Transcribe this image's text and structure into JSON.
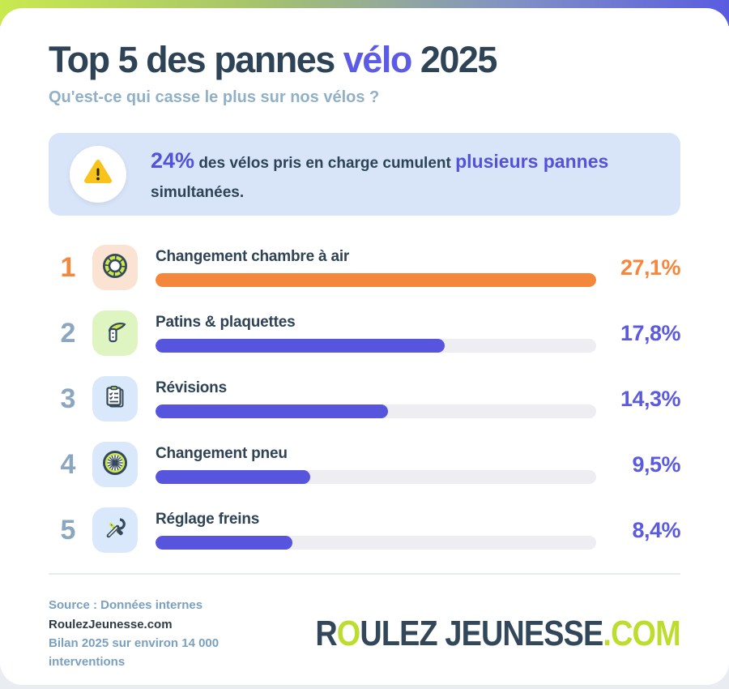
{
  "header": {
    "title_prefix": "Top 5 des pannes",
    "title_highlight": "vélo",
    "title_suffix": "2025",
    "subtitle": "Qu'est-ce qui casse le plus sur nos vélos ?"
  },
  "alert": {
    "stat": "24%",
    "segment_1": "des vélos pris en charge cumulent",
    "highlight": "plusieurs pannes",
    "segment_2": "simultanées.",
    "icon": "warning-triangle-icon",
    "bg_color": "#d8e5f8",
    "highlight_color": "#5352d8"
  },
  "chart_data": {
    "type": "bar",
    "orientation": "horizontal",
    "title": "Top 5 des pannes vélo 2025",
    "subtitle": "Qu'est-ce qui casse le plus sur nos vélos ?",
    "categories": [
      "Changement chambre à air",
      "Patins & plaquettes",
      "Révisions",
      "Changement pneu",
      "Réglage freins"
    ],
    "values": [
      27.1,
      17.8,
      14.3,
      9.5,
      8.4
    ],
    "value_labels": [
      "27,1%",
      "17,8%",
      "14,3%",
      "9,5%",
      "8,4%"
    ],
    "xlim": [
      0,
      27.1
    ],
    "grid": false,
    "legend": false,
    "annotation": "24% des vélos pris en charge cumulent plusieurs pannes simultanées."
  },
  "ranking": {
    "items": [
      {
        "rank": "1",
        "label": "Changement chambre à air",
        "value": 27.1,
        "value_label": "27,1%",
        "icon": "tire-tube-icon",
        "rank_color": "#f5873c",
        "accent": "#f5873c",
        "bar_color": "#f5873c",
        "tile_bg": "#fbe3d4"
      },
      {
        "rank": "2",
        "label": "Patins & plaquettes",
        "value": 17.8,
        "value_label": "17,8%",
        "icon": "brake-lever-icon",
        "rank_color": "#8ba7c0",
        "accent": "#5b5be0",
        "bar_color": "#5754de",
        "tile_bg": "#def5c2"
      },
      {
        "rank": "3",
        "label": "Révisions",
        "value": 14.3,
        "value_label": "14,3%",
        "icon": "checklist-icon",
        "rank_color": "#8ba7c0",
        "accent": "#5b5be0",
        "bar_color": "#5754de",
        "tile_bg": "#dae8fb"
      },
      {
        "rank": "4",
        "label": "Changement pneu",
        "value": 9.5,
        "value_label": "9,5%",
        "icon": "wheel-icon",
        "rank_color": "#8ba7c0",
        "accent": "#5b5be0",
        "bar_color": "#5754de",
        "tile_bg": "#dae8fb"
      },
      {
        "rank": "5",
        "label": "Réglage freins",
        "value": 8.4,
        "value_label": "8,4%",
        "icon": "tools-icon",
        "rank_color": "#8ba7c0",
        "accent": "#5b5be0",
        "bar_color": "#5754de",
        "tile_bg": "#dae8fb"
      }
    ]
  },
  "footer": {
    "source_line1_prefix": "Source : Données internes",
    "source_line1_bold": "RoulezJeunesse.com",
    "source_line2": "Bilan 2025 sur environ 14 000 interventions",
    "logo_part1": "R",
    "logo_part2": "O",
    "logo_part3": "ULEZ JEUNESSE",
    "logo_part4": ".COM",
    "logo_lime_color": "#bddd2e"
  },
  "colors": {
    "card_bg": "#ffffff",
    "page_bg": "#e9ecf1",
    "top_gradient_left": "#c9e94f",
    "top_gradient_right": "#5a5ce0",
    "title_dark": "#2e4356",
    "title_accent": "#5b5be6",
    "subtitle": "#90b0c8",
    "bar_track": "#ededf2",
    "warning_yellow": "#f8c41c"
  }
}
